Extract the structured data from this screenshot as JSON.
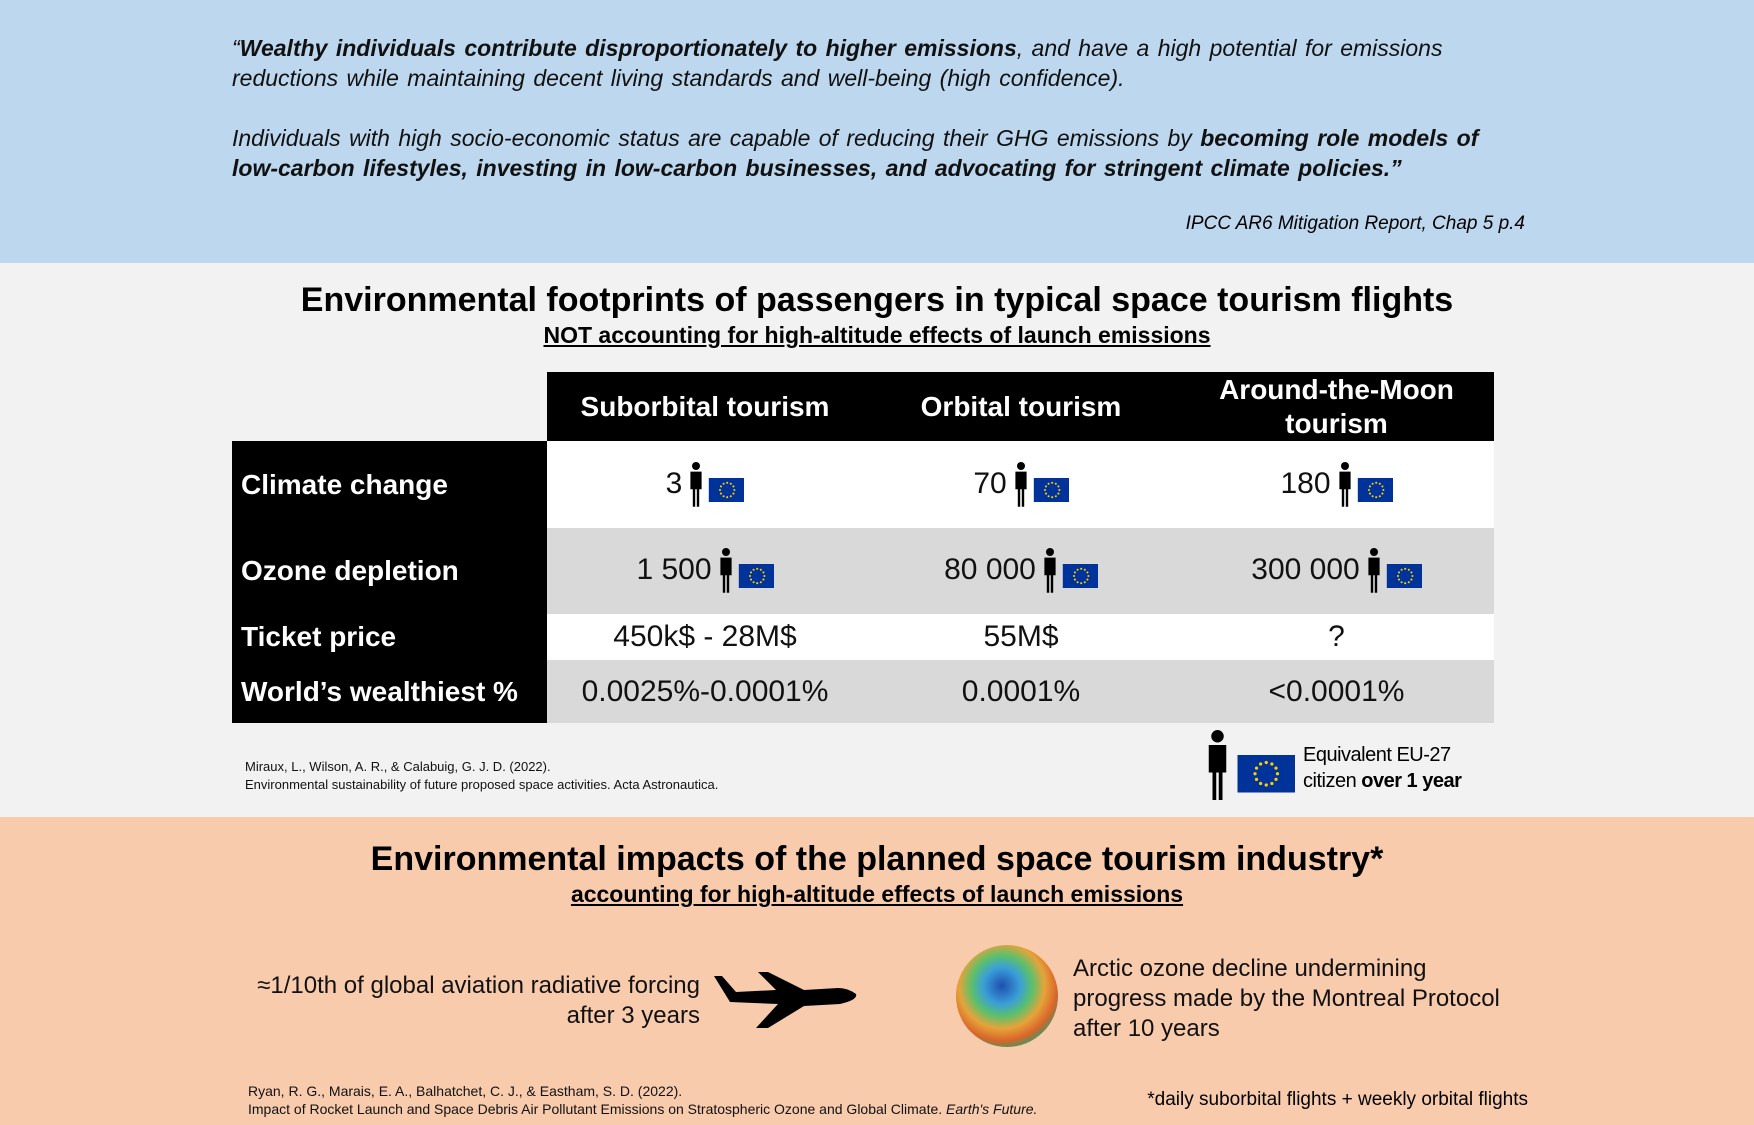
{
  "quote": {
    "paragraphs": [
      [
        {
          "text": "“",
          "bold": false
        },
        {
          "text": "Wealthy individuals contribute disproportionately to higher emissions",
          "bold": true
        },
        {
          "text": ", and have a high potential for emissions reductions while maintaining decent living standards and well-being (high confidence).",
          "bold": false
        }
      ],
      [
        {
          "text": "Individuals with high socio-economic status are capable of reducing their GHG emissions by ",
          "bold": false
        },
        {
          "text": "becoming role models of low-carbon lifestyles, investing in low-carbon businesses, and advocating for stringent climate policies.”",
          "bold": true
        }
      ]
    ],
    "source": "IPCC AR6 Mitigation Report, Chap 5 p.4"
  },
  "footprints": {
    "title": "Environmental footprints of passengers in typical space tourism flights",
    "subtitle": "NOT accounting for high-altitude effects of launch emissions",
    "columns": [
      "Suborbital tourism",
      "Orbital tourism",
      "Around-the-Moon tourism"
    ],
    "rows": [
      {
        "label": "Climate change",
        "cells": [
          "3",
          "70",
          "180"
        ]
      },
      {
        "label": "Ozone depletion",
        "cells": [
          "1 500",
          "80 000",
          "300 000"
        ]
      },
      {
        "label": "Ticket price",
        "cells": [
          "450k$ - 28M$",
          "55M$",
          "?"
        ]
      },
      {
        "label": "World’s wealthiest %",
        "cells": [
          "0.0025%-0.0001%",
          "0.0001%",
          "<0.0001%"
        ]
      }
    ],
    "reference": [
      "Miraux, L., Wilson, A. R., & Calabuig, G. J. D. (2022).",
      "Environmental sustainability of future proposed space activities. Acta Astronautica."
    ],
    "legend": [
      [
        {
          "text": "Equivalent EU-27",
          "bold": false
        }
      ],
      [
        {
          "text": "citizen ",
          "bold": false
        },
        {
          "text": "over 1 year",
          "bold": true
        }
      ]
    ]
  },
  "impacts": {
    "title": "Environmental impacts of the planned space tourism industry*",
    "subtitle": "accounting for high-altitude effects of launch emissions",
    "aviation": [
      "≈1/10th of global aviation radiative forcing",
      "after 3 years"
    ],
    "ozone": [
      "Arctic ozone decline undermining",
      "progress made by the Montreal Protocol",
      "after 10 years"
    ],
    "reference": [
      [
        {
          "text": "Ryan, R. G., Marais, E. A., Balhatchet, C. J., & Eastham, S. D. (2022).",
          "italic": false
        }
      ],
      [
        {
          "text": "Impact of Rocket Launch and Space Debris Air Pollutant Emissions on Stratospheric Ozone and Global Climate. ",
          "italic": false
        },
        {
          "text": "Earth's Future.",
          "italic": true
        }
      ]
    ],
    "footnote": "*daily suborbital flights + weekly orbital flights"
  }
}
